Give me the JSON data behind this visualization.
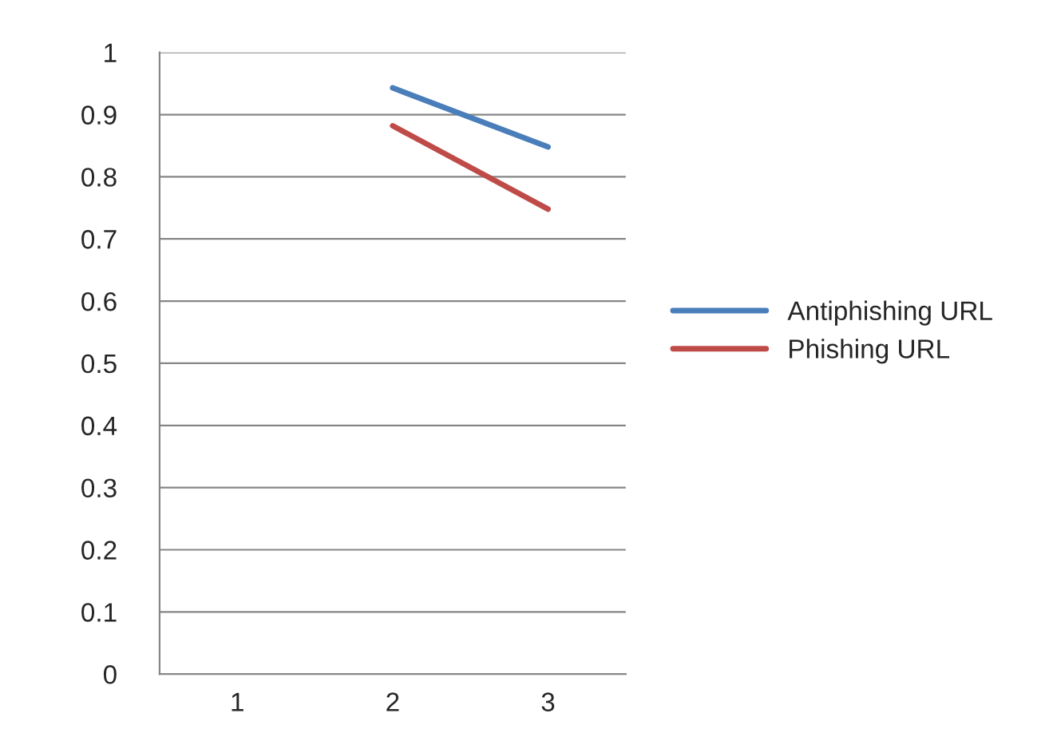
{
  "chart_data": {
    "type": "line",
    "categories": [
      "1",
      "2",
      "3"
    ],
    "series": [
      {
        "name": "Antiphishing URL",
        "color": "#4a7ebb",
        "values": [
          null,
          0.943,
          0.848
        ]
      },
      {
        "name": "Phishing URL",
        "color": "#be4b48",
        "values": [
          null,
          0.882,
          0.748
        ]
      }
    ],
    "ylim": [
      0,
      1
    ],
    "yticks": [
      0,
      0.1,
      0.2,
      0.3,
      0.4,
      0.5,
      0.6,
      0.7,
      0.8,
      0.9,
      1
    ],
    "grid": "y",
    "legend": "right",
    "marker": "none",
    "line_style": "solid"
  }
}
